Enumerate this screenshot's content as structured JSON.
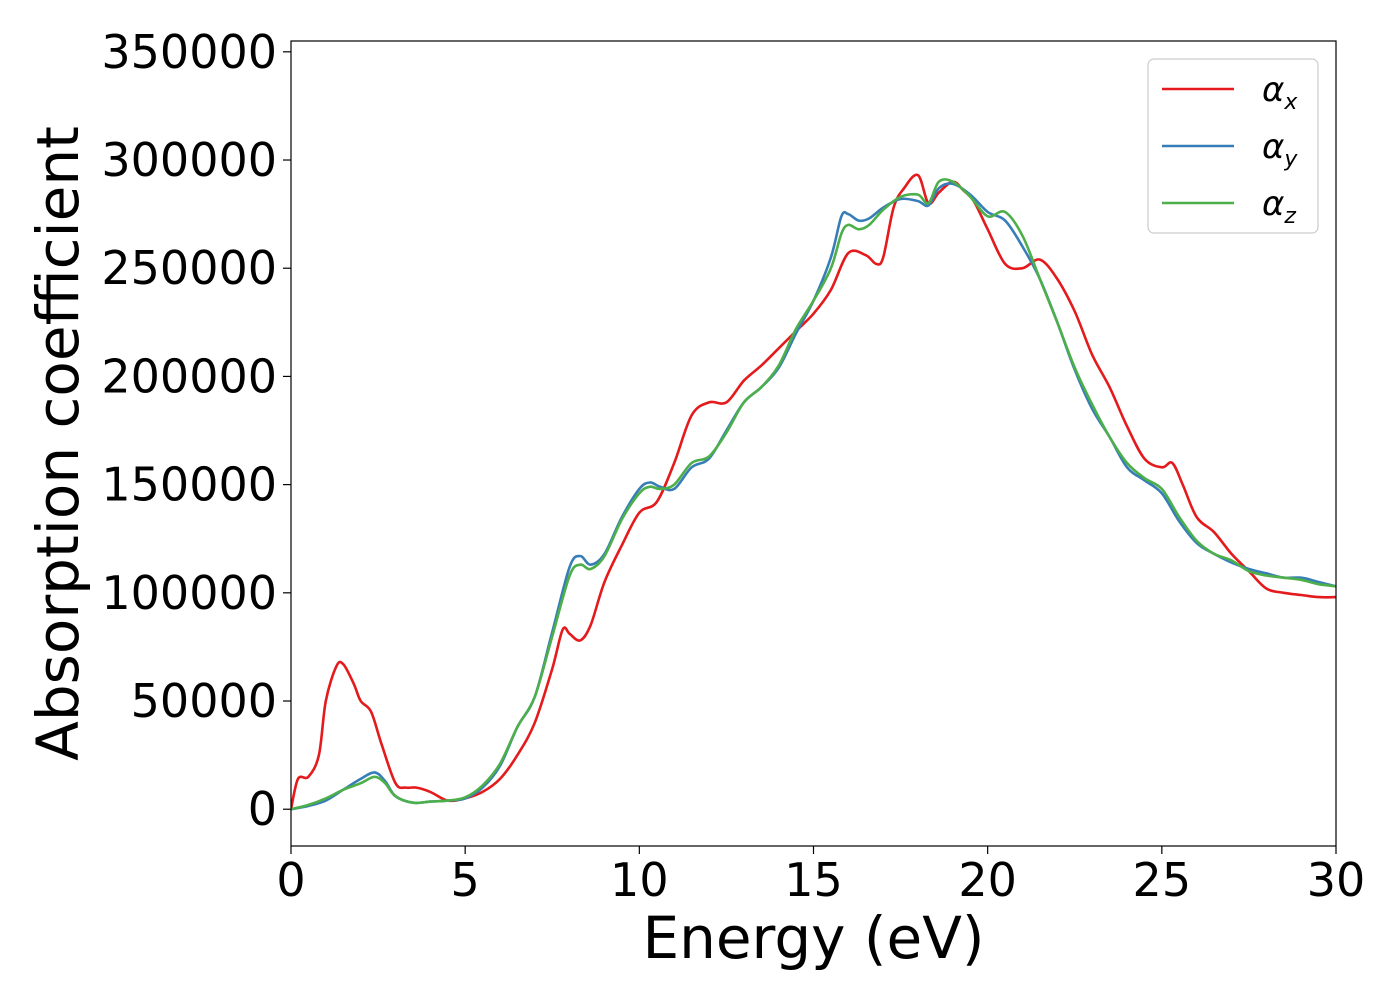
{
  "chart_data": {
    "type": "line",
    "title": "",
    "xlabel": "Energy (eV)",
    "ylabel": "Absorption coefficient",
    "xlim": [
      0,
      30
    ],
    "ylim": [
      -17000,
      355000
    ],
    "xticks": [
      0,
      5,
      10,
      15,
      20,
      25,
      30
    ],
    "yticks": [
      0,
      50000,
      100000,
      150000,
      200000,
      250000,
      300000,
      350000
    ],
    "grid": false,
    "legend_position": "top-right",
    "series": [
      {
        "name": "α",
        "subscript": "x",
        "color": "#e41a1c",
        "x": [
          0,
          0.2,
          0.5,
          0.8,
          1.0,
          1.3,
          1.5,
          1.8,
          2.0,
          2.3,
          2.6,
          3.0,
          3.3,
          3.6,
          4.0,
          4.5,
          5.0,
          5.5,
          6.0,
          6.5,
          7.0,
          7.5,
          7.8,
          8.0,
          8.3,
          8.6,
          9.0,
          9.5,
          10.0,
          10.5,
          11.0,
          11.5,
          12.0,
          12.5,
          13.0,
          13.5,
          14.0,
          14.5,
          15.0,
          15.5,
          16.0,
          16.5,
          16.8,
          17.0,
          17.3,
          17.6,
          18.0,
          18.3,
          18.6,
          19.0,
          19.3,
          19.6,
          20.0,
          20.5,
          21.0,
          21.5,
          22.0,
          22.5,
          23.0,
          23.5,
          24.0,
          24.5,
          25.0,
          25.3,
          25.6,
          26.0,
          26.5,
          27.0,
          27.5,
          28.0,
          28.5,
          29.0,
          29.5,
          30.0
        ],
        "y": [
          0,
          14000,
          15000,
          25000,
          50000,
          66000,
          67000,
          58000,
          50000,
          45000,
          30000,
          12000,
          10000,
          10000,
          8000,
          4000,
          5000,
          8000,
          14000,
          25000,
          40000,
          65000,
          83000,
          81000,
          78000,
          85000,
          105000,
          122000,
          137000,
          142000,
          160000,
          182000,
          188000,
          188000,
          198000,
          205000,
          213000,
          221000,
          229000,
          240000,
          257000,
          256000,
          252000,
          255000,
          278000,
          287000,
          293000,
          280000,
          285000,
          290000,
          286000,
          281000,
          268000,
          252000,
          250000,
          254000,
          245000,
          230000,
          210000,
          195000,
          177000,
          162000,
          158000,
          160000,
          150000,
          135000,
          128000,
          118000,
          110000,
          102000,
          100000,
          99000,
          98000,
          98000
        ]
      },
      {
        "name": "α",
        "subscript": "y",
        "color": "#377eb8",
        "x": [
          0,
          0.5,
          1.0,
          1.5,
          2.0,
          2.4,
          2.7,
          3.0,
          3.5,
          4.0,
          4.5,
          5.0,
          5.5,
          6.0,
          6.5,
          7.0,
          7.5,
          8.0,
          8.3,
          8.6,
          9.0,
          9.5,
          10.0,
          10.3,
          10.6,
          11.0,
          11.5,
          12.0,
          12.5,
          13.0,
          13.5,
          14.0,
          14.5,
          15.0,
          15.5,
          15.8,
          16.0,
          16.3,
          16.6,
          17.0,
          17.5,
          18.0,
          18.3,
          18.6,
          19.0,
          19.5,
          20.0,
          20.5,
          21.0,
          21.5,
          22.0,
          22.5,
          23.0,
          23.5,
          24.0,
          24.5,
          25.0,
          25.5,
          26.0,
          26.5,
          27.0,
          27.5,
          28.0,
          28.5,
          29.0,
          29.5,
          30.0
        ],
        "y": [
          0,
          1500,
          4000,
          9000,
          14000,
          17000,
          13000,
          6000,
          3000,
          3500,
          4000,
          5000,
          10000,
          20000,
          38000,
          52000,
          82000,
          112000,
          117000,
          113000,
          118000,
          135000,
          148000,
          151000,
          149000,
          148000,
          158000,
          162000,
          175000,
          188000,
          195000,
          204000,
          220000,
          235000,
          255000,
          274000,
          275000,
          272000,
          273000,
          278000,
          282000,
          281000,
          279000,
          287000,
          289000,
          284000,
          276000,
          272000,
          260000,
          245000,
          225000,
          203000,
          185000,
          172000,
          158000,
          152000,
          146000,
          133000,
          123000,
          118000,
          114000,
          111000,
          109000,
          107000,
          107000,
          105000,
          103000
        ]
      },
      {
        "name": "α",
        "subscript": "z",
        "color": "#4daf4a",
        "x": [
          0,
          0.5,
          1.0,
          1.5,
          2.0,
          2.4,
          2.7,
          3.0,
          3.5,
          4.0,
          4.5,
          5.0,
          5.5,
          6.0,
          6.5,
          7.0,
          7.5,
          8.0,
          8.3,
          8.6,
          9.0,
          9.5,
          10.0,
          10.3,
          10.6,
          11.0,
          11.5,
          12.0,
          12.5,
          13.0,
          13.5,
          14.0,
          14.5,
          15.0,
          15.5,
          15.8,
          16.0,
          16.3,
          16.6,
          17.0,
          17.5,
          18.0,
          18.3,
          18.6,
          19.0,
          19.5,
          20.0,
          20.5,
          21.0,
          21.5,
          22.0,
          22.5,
          23.0,
          23.5,
          24.0,
          24.5,
          25.0,
          25.5,
          26.0,
          26.5,
          27.0,
          27.5,
          28.0,
          28.5,
          29.0,
          29.5,
          30.0
        ],
        "y": [
          0,
          2000,
          5000,
          9000,
          12000,
          15000,
          12000,
          6000,
          3000,
          3500,
          4000,
          5500,
          11000,
          21000,
          38000,
          52000,
          80000,
          108000,
          113000,
          111000,
          117000,
          134000,
          146000,
          149000,
          148000,
          150000,
          160000,
          163000,
          174000,
          188000,
          195000,
          205000,
          222000,
          235000,
          250000,
          266000,
          270000,
          268000,
          270000,
          277000,
          283000,
          284000,
          280000,
          290000,
          290000,
          283000,
          274000,
          276000,
          265000,
          245000,
          225000,
          204000,
          187000,
          172000,
          160000,
          153000,
          148000,
          135000,
          124000,
          118000,
          115000,
          110000,
          108000,
          107000,
          106000,
          104000,
          103000
        ]
      }
    ]
  }
}
